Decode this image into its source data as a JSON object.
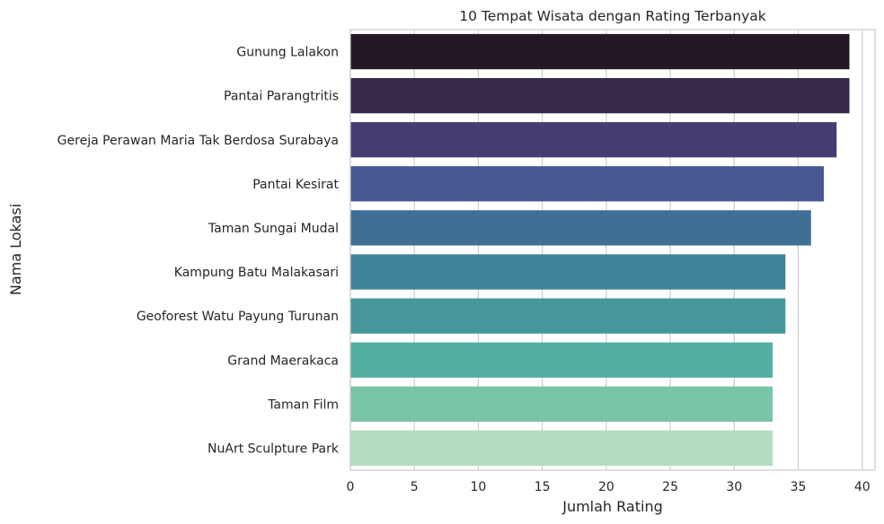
{
  "chart_data": {
    "type": "bar",
    "orientation": "horizontal",
    "title": "10 Tempat Wisata dengan Rating Terbanyak",
    "xlabel": "Jumlah Rating",
    "ylabel": "Nama Lokasi",
    "categories": [
      "Gunung Lalakon",
      "Pantai Parangtritis",
      "Gereja Perawan Maria Tak Berdosa Surabaya",
      "Pantai Kesirat",
      "Taman Sungai Mudal",
      "Kampung Batu Malakasari",
      "Geoforest Watu Payung Turunan",
      "Grand Maerakaca",
      "Taman Film",
      "NuArt Sculpture Park"
    ],
    "values": [
      39,
      39,
      38,
      37,
      36,
      34,
      34,
      33,
      33,
      33
    ],
    "colors": [
      "#241826",
      "#372a4b",
      "#463c71",
      "#485890",
      "#416e94",
      "#418399",
      "#46969c",
      "#53aea3",
      "#7bc5a7",
      "#b2ddc1"
    ],
    "xlim": [
      0,
      41
    ],
    "xticks": [
      0,
      5,
      10,
      15,
      20,
      25,
      30,
      35,
      40
    ],
    "grid": true
  }
}
